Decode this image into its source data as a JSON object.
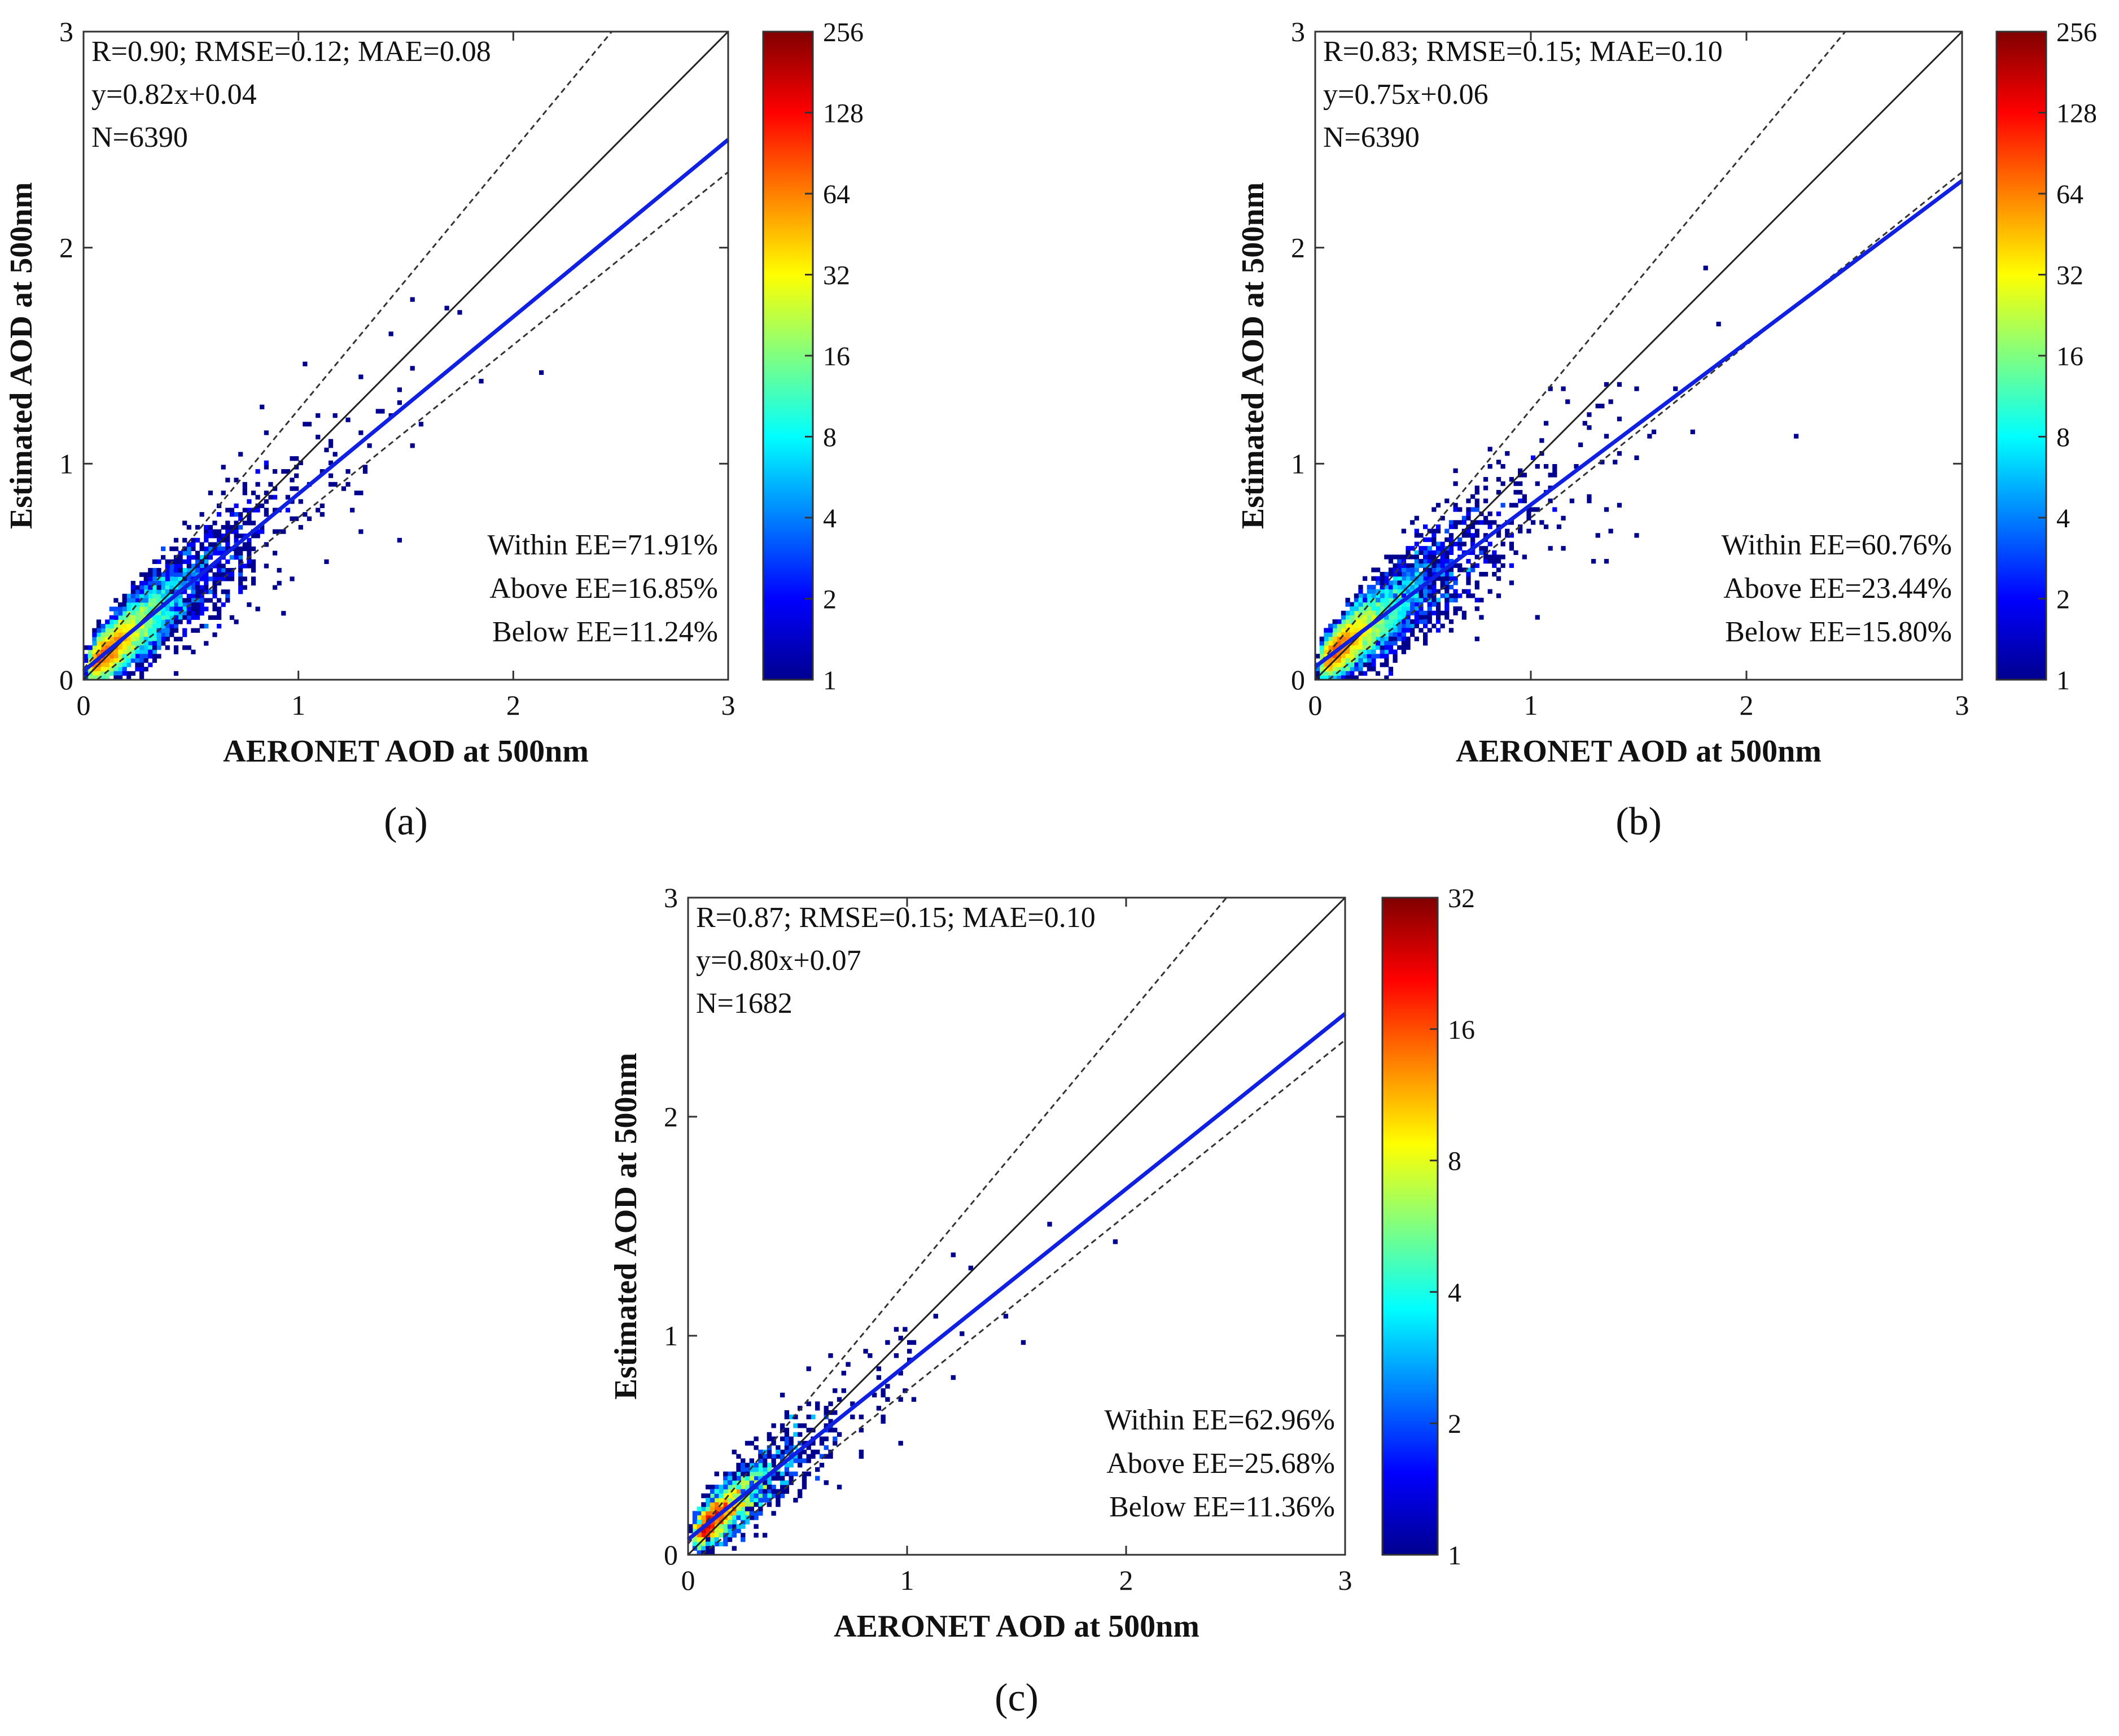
{
  "colors": {
    "fit_line": "#1020e0",
    "axis": "#333333",
    "one_to_one": "#222222",
    "ee_lines": "#333333",
    "colormap": [
      "#00008f",
      "#0000ff",
      "#0080ff",
      "#00ffff",
      "#80ff80",
      "#ffff00",
      "#ff8000",
      "#ff0000",
      "#800000"
    ]
  },
  "chart_data": [
    {
      "type": "heatmap",
      "panel_label": "(a)",
      "xlabel": "AERONET AOD at 500nm",
      "ylabel": "Estimated AOD at 500nm",
      "xlim": [
        0,
        3
      ],
      "ylim": [
        0,
        3
      ],
      "xticks": [
        "0",
        "1",
        "2",
        "3"
      ],
      "yticks": [
        "0",
        "1",
        "2",
        "3"
      ],
      "stats_line": "R=0.90; RMSE=0.12; MAE=0.08",
      "equation": "y=0.82x+0.04",
      "n_label": "N=6390",
      "fit": {
        "slope": 0.82,
        "intercept": 0.04
      },
      "ee": {
        "abs": 0.05,
        "rel": 0.2
      },
      "ee_text": [
        "Within EE=71.91%",
        "Above EE=16.85%",
        "Below EE=11.24%"
      ],
      "colorbar": {
        "ticks": [
          "1",
          "2",
          "4",
          "8",
          "16",
          "32",
          "64",
          "128",
          "256"
        ]
      },
      "density": {
        "n": 6390,
        "seed": 11,
        "max_count": 256
      }
    },
    {
      "type": "heatmap",
      "panel_label": "(b)",
      "xlabel": "AERONET AOD at 500nm",
      "ylabel": "Estimated AOD at 500nm",
      "xlim": [
        0,
        3
      ],
      "ylim": [
        0,
        3
      ],
      "xticks": [
        "0",
        "1",
        "2",
        "3"
      ],
      "yticks": [
        "0",
        "1",
        "2",
        "3"
      ],
      "stats_line": "R=0.83; RMSE=0.15; MAE=0.10",
      "equation": "y=0.75x+0.06",
      "n_label": "N=6390",
      "fit": {
        "slope": 0.75,
        "intercept": 0.06
      },
      "ee": {
        "abs": 0.05,
        "rel": 0.2
      },
      "ee_text": [
        "Within EE=60.76%",
        "Above EE=23.44%",
        "Below EE=15.80%"
      ],
      "colorbar": {
        "ticks": [
          "1",
          "2",
          "4",
          "8",
          "16",
          "32",
          "64",
          "128",
          "256"
        ]
      },
      "density": {
        "n": 6390,
        "seed": 23,
        "max_count": 256
      }
    },
    {
      "type": "heatmap",
      "panel_label": "(c)",
      "xlabel": "AERONET AOD at 500nm",
      "ylabel": "Estimated AOD at 500nm",
      "xlim": [
        0,
        3
      ],
      "ylim": [
        0,
        3
      ],
      "xticks": [
        "0",
        "1",
        "2",
        "3"
      ],
      "yticks": [
        "0",
        "1",
        "2",
        "3"
      ],
      "stats_line": "R=0.87; RMSE=0.15; MAE=0.10",
      "equation": "y=0.80x+0.07",
      "n_label": "N=1682",
      "fit": {
        "slope": 0.8,
        "intercept": 0.07
      },
      "ee": {
        "abs": 0.05,
        "rel": 0.2
      },
      "ee_text": [
        "Within EE=62.96%",
        "Above EE=25.68%",
        "Below EE=11.36%"
      ],
      "colorbar": {
        "ticks": [
          "1",
          "2",
          "4",
          "8",
          "16",
          "32"
        ]
      },
      "density": {
        "n": 1682,
        "seed": 37,
        "max_count": 32
      }
    }
  ]
}
